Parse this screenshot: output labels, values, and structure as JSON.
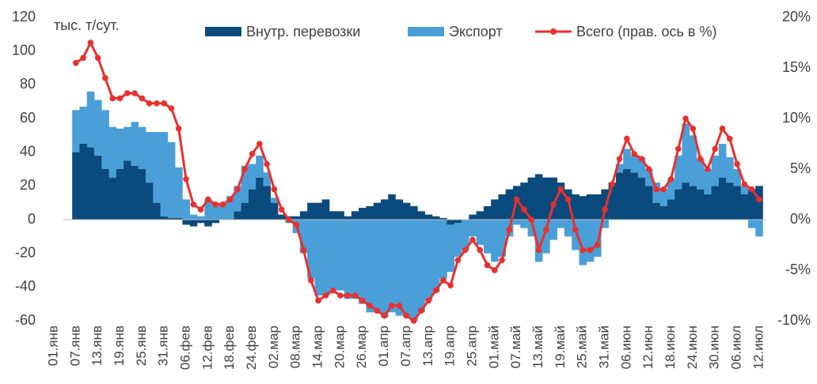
{
  "chart_data": {
    "type": "bar",
    "y_label": "тыс. т/сут.",
    "categories": [
      "01.янв",
      null,
      null,
      "07.янв",
      null,
      null,
      "13.янв",
      null,
      null,
      "19.янв",
      null,
      null,
      "25.янв",
      null,
      null,
      "31.янв",
      null,
      null,
      "06.фев",
      null,
      null,
      "12.фев",
      null,
      null,
      "18.фев",
      null,
      null,
      "24.фев",
      null,
      null,
      "02.мар",
      null,
      null,
      "08.мар",
      null,
      null,
      "14.мар",
      null,
      null,
      "20.мар",
      null,
      null,
      "26.мар",
      null,
      null,
      "01.апр",
      null,
      null,
      "07.апр",
      null,
      null,
      "13.апр",
      null,
      null,
      "19.апр",
      null,
      null,
      "25.апр",
      null,
      null,
      "01.май",
      null,
      null,
      "07.май",
      null,
      null,
      "13.май",
      null,
      null,
      "19.май",
      null,
      null,
      "25.май",
      null,
      null,
      "31.май",
      null,
      null,
      "06.июн",
      null,
      null,
      "12.июн",
      null,
      null,
      "18.июн",
      null,
      null,
      "24.июн",
      null,
      null,
      "30.июн",
      null,
      null,
      "06.июл",
      null,
      null,
      "12.июл"
    ],
    "series": [
      {
        "name": "Внутр. перевозки",
        "type": "bar",
        "color": "#0b4a7c",
        "values": [
          null,
          null,
          null,
          40,
          45,
          43,
          38,
          30,
          25,
          30,
          35,
          32,
          30,
          22,
          10,
          2,
          1,
          1,
          -3,
          -4,
          -2,
          -4,
          -2,
          0,
          0,
          5,
          10,
          18,
          25,
          20,
          10,
          3,
          2,
          2,
          5,
          10,
          10,
          12,
          5,
          5,
          2,
          5,
          7,
          8,
          10,
          12,
          15,
          12,
          10,
          8,
          5,
          3,
          2,
          1,
          -3,
          -2,
          0,
          3,
          5,
          8,
          12,
          15,
          18,
          20,
          22,
          25,
          27,
          25,
          25,
          22,
          18,
          15,
          14,
          15,
          15,
          18,
          22,
          28,
          30,
          28,
          25,
          20,
          10,
          8,
          12,
          18,
          22,
          20,
          18,
          15,
          20,
          25,
          22,
          20,
          15,
          18,
          20
        ]
      },
      {
        "name": "Экспорт",
        "type": "bar",
        "color": "#4a9fd8",
        "values": [
          null,
          null,
          null,
          25,
          22,
          33,
          33,
          35,
          30,
          24,
          20,
          26,
          25,
          30,
          42,
          50,
          45,
          30,
          12,
          3,
          2,
          12,
          10,
          10,
          14,
          15,
          22,
          15,
          13,
          8,
          3,
          0,
          -2,
          -8,
          -20,
          -35,
          -45,
          -45,
          -42,
          -42,
          -47,
          -47,
          -50,
          -55,
          -55,
          -58,
          -55,
          -57,
          -58,
          -60,
          -55,
          -48,
          -43,
          -35,
          -28,
          -20,
          -18,
          -10,
          -15,
          -20,
          -25,
          -22,
          -10,
          -3,
          -5,
          -10,
          -25,
          -20,
          -12,
          -5,
          -10,
          -18,
          -27,
          -25,
          -22,
          -5,
          0,
          5,
          12,
          10,
          12,
          10,
          12,
          10,
          12,
          20,
          35,
          30,
          18,
          15,
          18,
          20,
          15,
          10,
          5,
          -5,
          -10
        ]
      },
      {
        "name": "Всего (прав. ось в %)",
        "type": "line",
        "axis": "y2",
        "color": "#e8302e",
        "values": [
          null,
          null,
          null,
          15.5,
          16,
          17.5,
          16,
          14,
          12,
          12,
          12.5,
          12.5,
          12,
          11.5,
          11.5,
          11.5,
          11,
          9,
          4,
          1.5,
          1,
          2,
          1.5,
          1.5,
          2,
          3,
          5,
          6.5,
          7.5,
          5.5,
          3,
          1,
          0,
          -0.5,
          -3,
          -6,
          -8,
          -7.5,
          -7,
          -7.5,
          -7.5,
          -7.5,
          -8,
          -8.5,
          -9,
          -9.5,
          -8.5,
          -8.5,
          -9.5,
          -10,
          -9,
          -8,
          -7,
          -6,
          -6.5,
          -4,
          -3,
          -2,
          -3,
          -4.5,
          -5,
          -4,
          -1,
          2,
          1,
          0,
          -3,
          -1,
          1.5,
          3,
          2,
          -1,
          -3,
          -3,
          -2.5,
          1,
          3.5,
          6,
          8,
          6.5,
          6,
          5,
          3,
          3,
          4,
          7,
          10,
          9,
          6,
          5,
          7,
          9,
          8,
          5.5,
          3.5,
          3,
          2
        ]
      }
    ],
    "ylim": [
      -60,
      120
    ],
    "yticks": [
      -60,
      -40,
      -20,
      0,
      20,
      40,
      60,
      80,
      100,
      120
    ],
    "y2lim": [
      -10,
      20
    ],
    "y2ticks": [
      {
        "value": -10,
        "label": "-10%"
      },
      {
        "value": -5,
        "label": "-5%"
      },
      {
        "value": 0,
        "label": "0%"
      },
      {
        "value": 5,
        "label": "5%"
      },
      {
        "value": 10,
        "label": "10%"
      },
      {
        "value": 15,
        "label": "15%"
      },
      {
        "value": 20,
        "label": "20%"
      }
    ],
    "legend": "top"
  }
}
